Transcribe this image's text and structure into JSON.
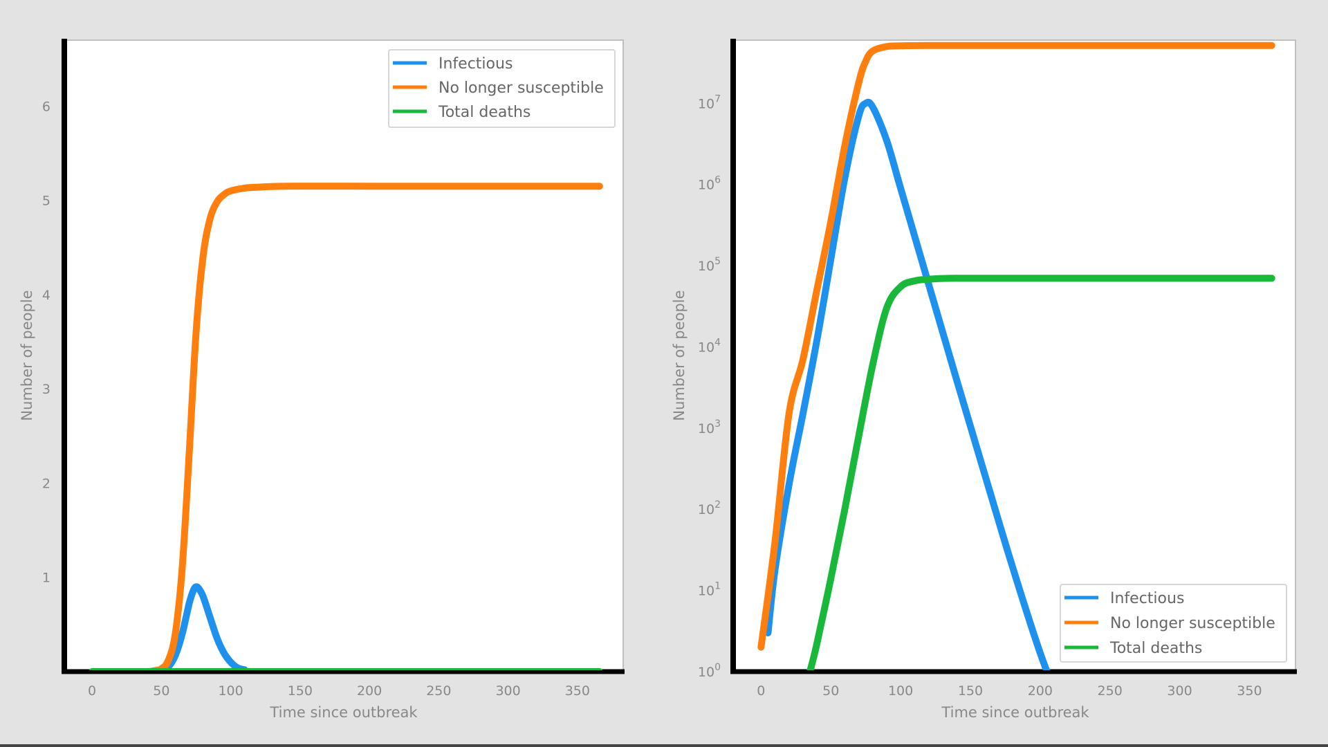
{
  "colors": {
    "infectious": "#1e90ee",
    "no_longer_susceptible": "#ff7f0e",
    "total_deaths": "#19b83a"
  },
  "chart_data": [
    {
      "type": "line",
      "scale_y": "linear",
      "xlabel": "Time since outbreak",
      "ylabel": "Number of people",
      "xlim": [
        -20,
        383
      ],
      "ylim": [
        0,
        6.7
      ],
      "xticks": [
        "0",
        "50",
        "100",
        "150",
        "200",
        "250",
        "300",
        "350"
      ],
      "yticks": [
        "1",
        "2",
        "3",
        "4",
        "5",
        "6"
      ],
      "legend": {
        "placement": "top-right",
        "entries": [
          "Infectious",
          "No longer susceptible",
          "Total deaths"
        ]
      },
      "grid": false,
      "series": [
        {
          "name": "Infectious",
          "color_key": "infectious",
          "x": [
            50,
            55,
            60,
            65,
            70,
            73,
            75,
            77,
            80,
            85,
            90,
            95,
            100,
            105,
            110
          ],
          "y": [
            0.0,
            0.05,
            0.17,
            0.4,
            0.72,
            0.86,
            0.9,
            0.88,
            0.8,
            0.58,
            0.36,
            0.2,
            0.1,
            0.04,
            0.02
          ]
        },
        {
          "name": "No longer susceptible",
          "color_key": "no_longer_susceptible",
          "x": [
            30,
            40,
            45,
            50,
            55,
            60,
            65,
            70,
            75,
            80,
            85,
            90,
            95,
            100,
            110,
            120,
            140,
            200,
            366
          ],
          "y": [
            0.0,
            0.0,
            0.01,
            0.03,
            0.12,
            0.4,
            1.1,
            2.3,
            3.6,
            4.4,
            4.8,
            4.98,
            5.06,
            5.1,
            5.13,
            5.14,
            5.15,
            5.15,
            5.15
          ]
        },
        {
          "name": "Total deaths",
          "color_key": "total_deaths",
          "x": [
            0,
            100,
            200,
            366
          ],
          "y": [
            0.0,
            0.0,
            0.0,
            0.0
          ]
        }
      ]
    },
    {
      "type": "line",
      "scale_y": "log",
      "xlabel": "Time since outbreak",
      "ylabel": "Number of people",
      "xlim": [
        -20,
        383
      ],
      "ylim": [
        1,
        60000000
      ],
      "xticks": [
        "0",
        "50",
        "100",
        "150",
        "200",
        "250",
        "300",
        "350"
      ],
      "yticks": [
        {
          "base": "10",
          "exp": "0"
        },
        {
          "base": "10",
          "exp": "1"
        },
        {
          "base": "10",
          "exp": "2"
        },
        {
          "base": "10",
          "exp": "3"
        },
        {
          "base": "10",
          "exp": "4"
        },
        {
          "base": "10",
          "exp": "5"
        },
        {
          "base": "10",
          "exp": "6"
        },
        {
          "base": "10",
          "exp": "7"
        }
      ],
      "legend": {
        "placement": "bottom-right",
        "entries": [
          "Infectious",
          "No longer susceptible",
          "Total deaths"
        ]
      },
      "grid": false,
      "series": [
        {
          "name": "Infectious",
          "color_key": "infectious",
          "x": [
            5,
            10,
            20,
            30,
            40,
            50,
            60,
            70,
            75,
            80,
            90,
            100,
            120,
            140,
            160,
            180,
            200,
            212
          ],
          "y": [
            3,
            18,
            200,
            1500,
            12000,
            120000,
            1200000,
            7000000,
            10000000,
            9000000,
            3500000,
            900000,
            60000,
            4000,
            280,
            20,
            1.7,
            0.5
          ]
        },
        {
          "name": "No longer susceptible",
          "color_key": "no_longer_susceptible",
          "x": [
            0,
            10,
            20,
            30,
            40,
            50,
            60,
            70,
            75,
            80,
            90,
            100,
            120,
            150,
            366
          ],
          "y": [
            2,
            40,
            1500,
            7000,
            50000,
            350000,
            3000000,
            18000000,
            33000000,
            44000000,
            50000000,
            51000000,
            51500000,
            51500000,
            51500000
          ]
        },
        {
          "name": "Total deaths",
          "color_key": "total_deaths",
          "x": [
            35,
            40,
            50,
            60,
            70,
            80,
            90,
            100,
            110,
            120,
            140,
            200,
            366
          ],
          "y": [
            1,
            2.2,
            14,
            100,
            800,
            6000,
            30000,
            55000,
            65000,
            68000,
            70000,
            70000,
            70000
          ]
        }
      ]
    }
  ]
}
